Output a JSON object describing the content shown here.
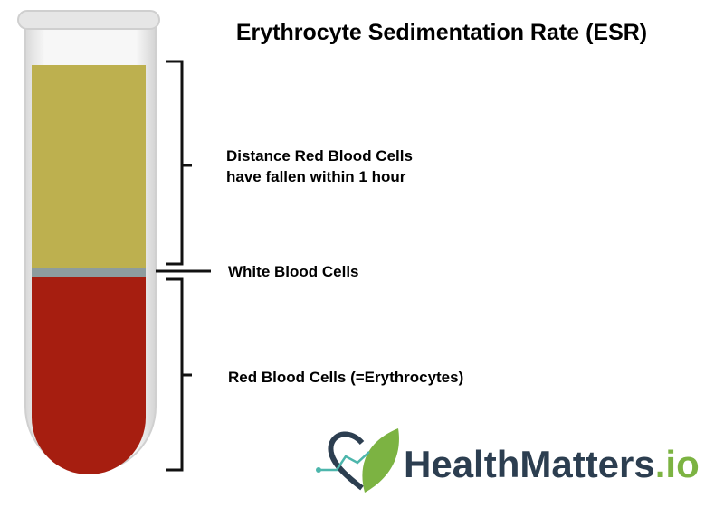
{
  "title": "Erythrocyte Sedimentation Rate (ESR)",
  "labels": {
    "plasma": [
      "Distance Red Blood Cells",
      "have fallen within 1 hour"
    ],
    "white_cells": "White Blood Cells",
    "red_cells": "Red Blood Cells (=Erythrocytes)"
  },
  "logo": {
    "name": "HealthMatters",
    "suffix": ".io"
  }
}
